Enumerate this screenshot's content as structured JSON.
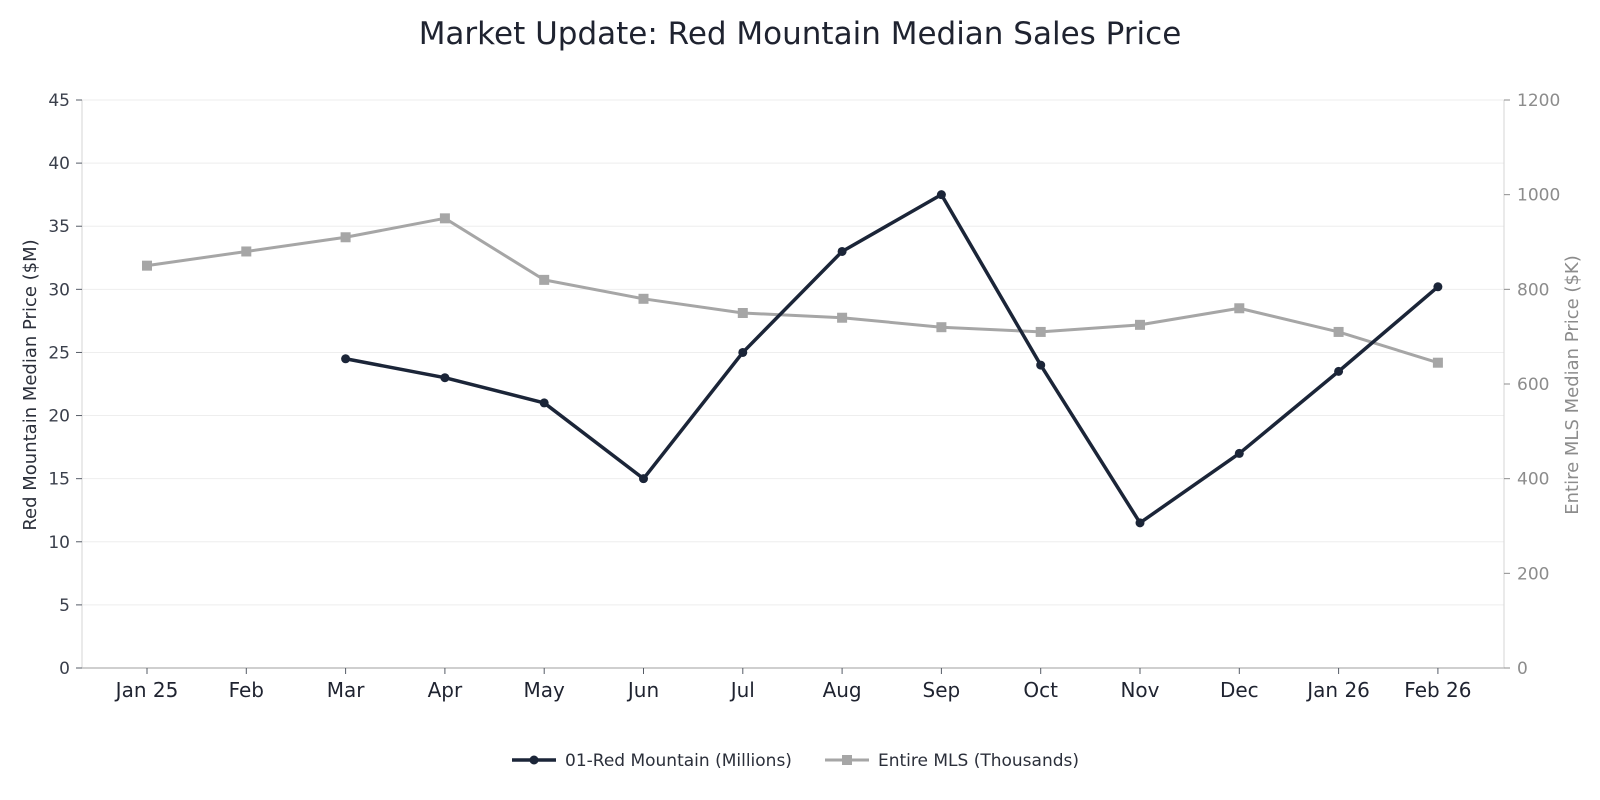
{
  "chart_data": {
    "type": "line",
    "title": "Market Update: Red Mountain Median Sales Price",
    "categories": [
      "Jan 25",
      "Feb",
      "Mar",
      "Apr",
      "May",
      "Jun",
      "Jul",
      "Aug",
      "Sep",
      "Oct",
      "Nov",
      "Dec",
      "Jan 26",
      "Feb 26"
    ],
    "series": [
      {
        "name": "01-Red Mountain (Millions)",
        "axis": "left",
        "color": "#1b2538",
        "marker": "circle",
        "values": [
          null,
          null,
          24.5,
          23.0,
          21.0,
          15.0,
          25.0,
          33.0,
          37.5,
          24.0,
          11.5,
          17.0,
          23.5,
          30.2
        ]
      },
      {
        "name": "Entire MLS (Thousands)",
        "axis": "right",
        "color": "#a6a6a6",
        "marker": "square",
        "values": [
          850,
          880,
          910,
          950,
          820,
          780,
          750,
          740,
          720,
          710,
          725,
          760,
          710,
          645
        ]
      }
    ],
    "ylabel": "Red Mountain Median Price ($M)",
    "ylabel_right": "Entire MLS Median Price ($K)",
    "ylim": [
      0,
      45
    ],
    "yticks": [
      0,
      5,
      10,
      15,
      20,
      25,
      30,
      35,
      40,
      45
    ],
    "ylim_right": [
      0,
      1200
    ],
    "yticks_right": [
      0,
      200,
      400,
      600,
      800,
      1000,
      1200
    ],
    "grid": true,
    "legend": "bottom-center"
  }
}
